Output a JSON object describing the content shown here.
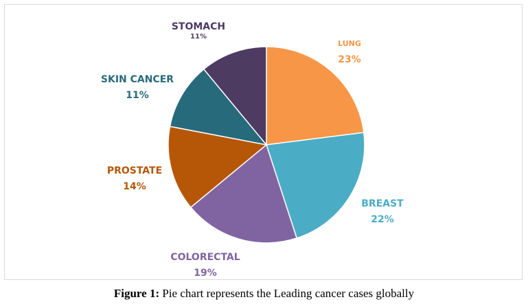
{
  "chart_data": {
    "type": "pie",
    "slices": [
      {
        "label": "LUNG",
        "value": 23,
        "value_label": "23%",
        "color": "#f79646",
        "label_color": "#f79646"
      },
      {
        "label": "BREAST",
        "value": 22,
        "value_label": "22%",
        "color": "#4bacc6",
        "label_color": "#4bacc6"
      },
      {
        "label": "COLORECTAL",
        "value": 19,
        "value_label": "19%",
        "color": "#8064a2",
        "label_color": "#8064a2"
      },
      {
        "label": "PROSTATE",
        "value": 14,
        "value_label": "14%",
        "color": "#b65708",
        "label_color": "#b65708"
      },
      {
        "label": "SKIN CANCER",
        "value": 11,
        "value_label": "11%",
        "color": "#276a7c",
        "label_color": "#276a7c"
      },
      {
        "label": "STOMACH",
        "value": 11,
        "value_label": "11%",
        "color": "#4d3b62",
        "label_color": "#4d3b62"
      }
    ],
    "start_angle_deg": 0,
    "direction": "clockwise",
    "legend": "none"
  },
  "caption": {
    "prefix": "Figure 1:",
    "text": " Pie chart represents the Leading cancer cases globally"
  }
}
